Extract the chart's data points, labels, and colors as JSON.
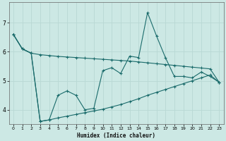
{
  "xlabel": "Humidex (Indice chaleur)",
  "bg_color": "#cce8e4",
  "line_color": "#1a6b6b",
  "grid_color": "#b8d8d4",
  "xlim": [
    -0.5,
    23.5
  ],
  "ylim": [
    3.5,
    7.7
  ],
  "yticks": [
    4,
    5,
    6,
    7
  ],
  "xticks": [
    0,
    1,
    2,
    3,
    4,
    5,
    6,
    7,
    8,
    9,
    10,
    11,
    12,
    13,
    14,
    15,
    16,
    17,
    18,
    19,
    20,
    21,
    22,
    23
  ],
  "series1_x": [
    0,
    1,
    2,
    3,
    4,
    5,
    6,
    7,
    8,
    9,
    10,
    11,
    12,
    13,
    14,
    15,
    16,
    17,
    18,
    19,
    20,
    21,
    22,
    23
  ],
  "series1_y": [
    6.6,
    6.1,
    5.95,
    5.9,
    5.87,
    5.84,
    5.82,
    5.8,
    5.78,
    5.76,
    5.74,
    5.72,
    5.7,
    5.68,
    5.65,
    5.62,
    5.59,
    5.56,
    5.53,
    5.5,
    5.47,
    5.44,
    5.41,
    4.95
  ],
  "series2_x": [
    0,
    1,
    2,
    3,
    4,
    5,
    6,
    7,
    8,
    9,
    10,
    11,
    12,
    13,
    14,
    15,
    16,
    17,
    18,
    19,
    20,
    21,
    22,
    23
  ],
  "series2_y": [
    6.6,
    6.1,
    5.95,
    3.6,
    3.65,
    4.5,
    4.65,
    4.5,
    4.0,
    4.05,
    5.35,
    5.45,
    5.25,
    5.85,
    5.8,
    7.35,
    6.55,
    5.8,
    5.15,
    5.15,
    5.1,
    5.3,
    5.15,
    4.95
  ],
  "series3_x": [
    0,
    1,
    2,
    3,
    4,
    5,
    6,
    7,
    8,
    9,
    10,
    11,
    12,
    13,
    14,
    15,
    16,
    17,
    18,
    19,
    20,
    21,
    22,
    23
  ],
  "series3_y": [
    6.6,
    6.1,
    5.95,
    3.6,
    3.65,
    3.72,
    3.78,
    3.84,
    3.9,
    3.96,
    4.02,
    4.1,
    4.18,
    4.28,
    4.38,
    4.5,
    4.6,
    4.7,
    4.8,
    4.9,
    5.0,
    5.1,
    5.2,
    4.95
  ]
}
